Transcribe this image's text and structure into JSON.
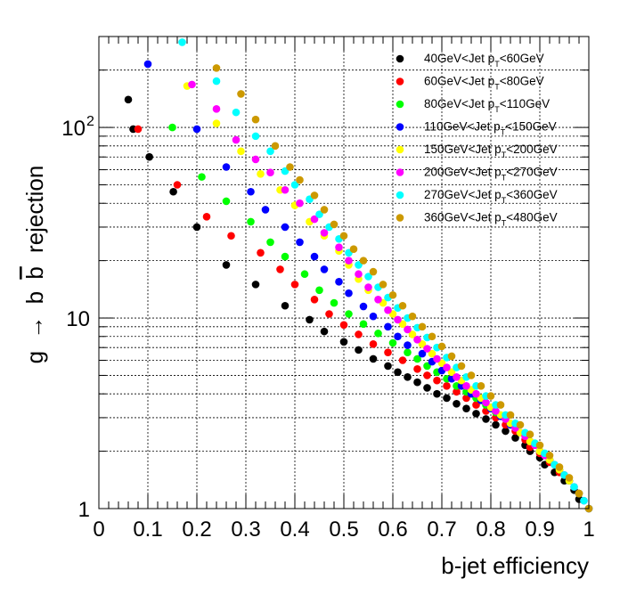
{
  "chart_data": {
    "type": "scatter",
    "title": "",
    "xlabel": "b-jet efficiency",
    "ylabel_parts": [
      "g",
      "→",
      "b",
      "b",
      "rejection"
    ],
    "xlim": [
      0,
      1
    ],
    "ylim": [
      1,
      300
    ],
    "yscale": "log",
    "grid": true,
    "legend_placement": "top-right",
    "x_ticks": [
      "0",
      "0.1",
      "0.2",
      "0.3",
      "0.4",
      "0.5",
      "0.6",
      "0.7",
      "0.8",
      "0.9",
      "1"
    ],
    "y_ticks": [
      {
        "label": "1",
        "exp": "",
        "value": 1
      },
      {
        "label": "10",
        "exp": "",
        "value": 10
      },
      {
        "label": "10",
        "exp": "2",
        "value": 100
      }
    ],
    "series": [
      {
        "legend": {
          "pre": "40GeV<Jet p",
          "sub": "T",
          "post": "<60GeV"
        },
        "color": "#000000",
        "points": [
          [
            0.06,
            140
          ],
          [
            0.07,
            98
          ],
          [
            0.103,
            70
          ],
          [
            0.152,
            46
          ],
          [
            0.2,
            30
          ],
          [
            0.26,
            19
          ],
          [
            0.32,
            15
          ],
          [
            0.38,
            11.6
          ],
          [
            0.43,
            9.8
          ],
          [
            0.46,
            8.5
          ],
          [
            0.5,
            7.5
          ],
          [
            0.53,
            6.8
          ],
          [
            0.56,
            6.1
          ],
          [
            0.59,
            5.6
          ],
          [
            0.61,
            5.2
          ],
          [
            0.63,
            4.9
          ],
          [
            0.65,
            4.6
          ],
          [
            0.67,
            4.3
          ],
          [
            0.69,
            4.0
          ],
          [
            0.71,
            3.8
          ],
          [
            0.73,
            3.55
          ],
          [
            0.75,
            3.35
          ],
          [
            0.77,
            3.15
          ],
          [
            0.79,
            2.95
          ],
          [
            0.81,
            2.75
          ],
          [
            0.83,
            2.55
          ],
          [
            0.85,
            2.35
          ],
          [
            0.87,
            2.15
          ],
          [
            0.88,
            2.0
          ],
          [
            0.9,
            1.85
          ],
          [
            0.91,
            1.7
          ],
          [
            0.93,
            1.55
          ],
          [
            0.95,
            1.4
          ],
          [
            0.97,
            1.25
          ],
          [
            0.98,
            1.12
          ],
          [
            1.0,
            1.0
          ]
        ]
      },
      {
        "legend": {
          "pre": "60GeV<Jet p",
          "sub": "T",
          "post": "<80GeV"
        },
        "color": "#ff0000",
        "points": [
          [
            0.08,
            98
          ],
          [
            0.16,
            50
          ],
          [
            0.22,
            34
          ],
          [
            0.27,
            27
          ],
          [
            0.33,
            22
          ],
          [
            0.37,
            18
          ],
          [
            0.4,
            15
          ],
          [
            0.44,
            12.5
          ],
          [
            0.47,
            10.5
          ],
          [
            0.5,
            9.2
          ],
          [
            0.53,
            8.2
          ],
          [
            0.56,
            7.3
          ],
          [
            0.59,
            6.6
          ],
          [
            0.62,
            6.0
          ],
          [
            0.65,
            5.4
          ],
          [
            0.67,
            5.0
          ],
          [
            0.69,
            4.7
          ],
          [
            0.71,
            4.4
          ],
          [
            0.73,
            4.1
          ],
          [
            0.75,
            3.8
          ],
          [
            0.77,
            3.5
          ],
          [
            0.79,
            3.25
          ],
          [
            0.81,
            3.0
          ],
          [
            0.83,
            2.75
          ],
          [
            0.85,
            2.55
          ],
          [
            0.87,
            2.3
          ],
          [
            0.88,
            2.1
          ],
          [
            0.9,
            1.95
          ],
          [
            0.92,
            1.75
          ],
          [
            0.94,
            1.55
          ],
          [
            0.96,
            1.4
          ],
          [
            0.98,
            1.2
          ],
          [
            1.0,
            1.0
          ]
        ]
      },
      {
        "legend": {
          "pre": "80GeV<Jet p",
          "sub": "T",
          "post": "<110GeV"
        },
        "color": "#00ff00",
        "points": [
          [
            0.15,
            100
          ],
          [
            0.21,
            55
          ],
          [
            0.26,
            41
          ],
          [
            0.31,
            32
          ],
          [
            0.35,
            25
          ],
          [
            0.38,
            21
          ],
          [
            0.42,
            17
          ],
          [
            0.45,
            14
          ],
          [
            0.48,
            12
          ],
          [
            0.51,
            10.5
          ],
          [
            0.54,
            9.3
          ],
          [
            0.57,
            8.3
          ],
          [
            0.6,
            7.4
          ],
          [
            0.63,
            6.6
          ],
          [
            0.65,
            6.1
          ],
          [
            0.67,
            5.6
          ],
          [
            0.69,
            5.2
          ],
          [
            0.71,
            4.8
          ],
          [
            0.73,
            4.4
          ],
          [
            0.75,
            4.1
          ],
          [
            0.77,
            3.8
          ],
          [
            0.79,
            3.5
          ],
          [
            0.81,
            3.2
          ],
          [
            0.83,
            2.95
          ],
          [
            0.85,
            2.7
          ],
          [
            0.87,
            2.45
          ],
          [
            0.89,
            2.2
          ],
          [
            0.9,
            2.0
          ],
          [
            0.92,
            1.8
          ],
          [
            0.94,
            1.6
          ],
          [
            0.96,
            1.4
          ],
          [
            0.98,
            1.2
          ],
          [
            1.0,
            1.0
          ]
        ]
      },
      {
        "legend": {
          "pre": "110GeV<Jet p",
          "sub": "T",
          "post": "<150GeV"
        },
        "color": "#0000ff",
        "points": [
          [
            0.1,
            215
          ],
          [
            0.2,
            98
          ],
          [
            0.26,
            62
          ],
          [
            0.31,
            46
          ],
          [
            0.34,
            37
          ],
          [
            0.38,
            30
          ],
          [
            0.41,
            25
          ],
          [
            0.44,
            21
          ],
          [
            0.46,
            18
          ],
          [
            0.49,
            15.5
          ],
          [
            0.51,
            13.5
          ],
          [
            0.54,
            11.5
          ],
          [
            0.56,
            10.2
          ],
          [
            0.59,
            9.0
          ],
          [
            0.61,
            8.0
          ],
          [
            0.63,
            7.2
          ],
          [
            0.66,
            6.5
          ],
          [
            0.68,
            5.9
          ],
          [
            0.7,
            5.3
          ],
          [
            0.72,
            4.8
          ],
          [
            0.74,
            4.4
          ],
          [
            0.76,
            4.0
          ],
          [
            0.78,
            3.7
          ],
          [
            0.8,
            3.35
          ],
          [
            0.82,
            3.05
          ],
          [
            0.84,
            2.75
          ],
          [
            0.86,
            2.5
          ],
          [
            0.88,
            2.25
          ],
          [
            0.9,
            2.0
          ],
          [
            0.92,
            1.8
          ],
          [
            0.94,
            1.6
          ],
          [
            0.96,
            1.4
          ],
          [
            0.98,
            1.2
          ],
          [
            1.0,
            1.0
          ]
        ]
      },
      {
        "legend": {
          "pre": "150GeV<Jet p",
          "sub": "T",
          "post": "<200GeV"
        },
        "color": "#ffff00",
        "points": [
          [
            0.18,
            165
          ],
          [
            0.24,
            105
          ],
          [
            0.29,
            75
          ],
          [
            0.33,
            57
          ],
          [
            0.37,
            47
          ],
          [
            0.4,
            39
          ],
          [
            0.43,
            32
          ],
          [
            0.46,
            27
          ],
          [
            0.49,
            22.5
          ],
          [
            0.51,
            19
          ],
          [
            0.53,
            16
          ],
          [
            0.55,
            14
          ],
          [
            0.58,
            12
          ],
          [
            0.6,
            10.5
          ],
          [
            0.62,
            9.3
          ],
          [
            0.64,
            8.2
          ],
          [
            0.66,
            7.3
          ],
          [
            0.68,
            6.5
          ],
          [
            0.7,
            5.8
          ],
          [
            0.72,
            5.2
          ],
          [
            0.74,
            4.7
          ],
          [
            0.76,
            4.2
          ],
          [
            0.78,
            3.8
          ],
          [
            0.8,
            3.4
          ],
          [
            0.82,
            3.1
          ],
          [
            0.84,
            2.8
          ],
          [
            0.86,
            2.5
          ],
          [
            0.88,
            2.25
          ],
          [
            0.9,
            2.0
          ],
          [
            0.92,
            1.8
          ],
          [
            0.94,
            1.6
          ],
          [
            0.96,
            1.4
          ],
          [
            0.98,
            1.2
          ],
          [
            1.0,
            1.0
          ]
        ]
      },
      {
        "legend": {
          "pre": "200GeV<Jet p",
          "sub": "T",
          "post": "<270GeV"
        },
        "color": "#ff00ff",
        "points": [
          [
            0.19,
            168
          ],
          [
            0.24,
            125
          ],
          [
            0.28,
            86
          ],
          [
            0.32,
            68
          ],
          [
            0.35,
            58
          ],
          [
            0.38,
            47
          ],
          [
            0.41,
            40
          ],
          [
            0.44,
            33
          ],
          [
            0.46,
            28
          ],
          [
            0.49,
            23.5
          ],
          [
            0.51,
            20
          ],
          [
            0.53,
            17
          ],
          [
            0.55,
            14.5
          ],
          [
            0.57,
            12.5
          ],
          [
            0.59,
            11
          ],
          [
            0.61,
            9.8
          ],
          [
            0.63,
            8.7
          ],
          [
            0.65,
            7.7
          ],
          [
            0.67,
            6.9
          ],
          [
            0.69,
            6.1
          ],
          [
            0.71,
            5.5
          ],
          [
            0.73,
            4.9
          ],
          [
            0.75,
            4.4
          ],
          [
            0.77,
            4.0
          ],
          [
            0.79,
            3.6
          ],
          [
            0.81,
            3.25
          ],
          [
            0.83,
            2.95
          ],
          [
            0.85,
            2.65
          ],
          [
            0.87,
            2.4
          ],
          [
            0.89,
            2.15
          ],
          [
            0.91,
            1.9
          ],
          [
            0.93,
            1.7
          ],
          [
            0.95,
            1.5
          ],
          [
            0.97,
            1.3
          ],
          [
            0.99,
            1.1
          ],
          [
            1.0,
            1.0
          ]
        ]
      },
      {
        "legend": {
          "pre": "270GeV<Jet p",
          "sub": "T",
          "post": "<360GeV"
        },
        "color": "#00ffff",
        "points": [
          [
            0.17,
            280
          ],
          [
            0.24,
            175
          ],
          [
            0.28,
            120
          ],
          [
            0.32,
            90
          ],
          [
            0.35,
            75
          ],
          [
            0.38,
            59
          ],
          [
            0.4,
            50
          ],
          [
            0.43,
            42
          ],
          [
            0.45,
            35
          ],
          [
            0.47,
            30
          ],
          [
            0.49,
            26
          ],
          [
            0.51,
            22
          ],
          [
            0.53,
            19
          ],
          [
            0.55,
            16.5
          ],
          [
            0.57,
            14.5
          ],
          [
            0.59,
            12.8
          ],
          [
            0.61,
            11.3
          ],
          [
            0.63,
            10
          ],
          [
            0.65,
            8.9
          ],
          [
            0.67,
            7.9
          ],
          [
            0.69,
            7.0
          ],
          [
            0.71,
            6.2
          ],
          [
            0.73,
            5.5
          ],
          [
            0.75,
            4.9
          ],
          [
            0.77,
            4.4
          ],
          [
            0.79,
            3.9
          ],
          [
            0.81,
            3.5
          ],
          [
            0.83,
            3.1
          ],
          [
            0.85,
            2.8
          ],
          [
            0.87,
            2.5
          ],
          [
            0.89,
            2.2
          ],
          [
            0.91,
            1.95
          ],
          [
            0.93,
            1.7
          ],
          [
            0.95,
            1.5
          ],
          [
            0.97,
            1.3
          ],
          [
            0.99,
            1.1
          ],
          [
            1.0,
            1.0
          ]
        ]
      },
      {
        "legend": {
          "pre": "360GeV<Jet p",
          "sub": "T",
          "post": "<480GeV"
        },
        "color": "#cc9900",
        "points": [
          [
            0.24,
            205
          ],
          [
            0.29,
            150
          ],
          [
            0.32,
            110
          ],
          [
            0.36,
            80
          ],
          [
            0.39,
            62
          ],
          [
            0.41,
            53
          ],
          [
            0.44,
            44
          ],
          [
            0.46,
            37
          ],
          [
            0.48,
            31
          ],
          [
            0.5,
            27
          ],
          [
            0.52,
            23
          ],
          [
            0.54,
            20
          ],
          [
            0.56,
            17.5
          ],
          [
            0.58,
            15
          ],
          [
            0.6,
            13.2
          ],
          [
            0.62,
            11.6
          ],
          [
            0.64,
            10.2
          ],
          [
            0.66,
            9.0
          ],
          [
            0.68,
            8.0
          ],
          [
            0.7,
            7.1
          ],
          [
            0.72,
            6.3
          ],
          [
            0.74,
            5.6
          ],
          [
            0.76,
            5.0
          ],
          [
            0.78,
            4.4
          ],
          [
            0.8,
            3.9
          ],
          [
            0.82,
            3.5
          ],
          [
            0.84,
            3.1
          ],
          [
            0.86,
            2.75
          ],
          [
            0.88,
            2.45
          ],
          [
            0.9,
            2.15
          ],
          [
            0.92,
            1.9
          ],
          [
            0.94,
            1.65
          ],
          [
            0.96,
            1.45
          ],
          [
            0.98,
            1.2
          ],
          [
            1.0,
            1.0
          ]
        ]
      }
    ]
  }
}
